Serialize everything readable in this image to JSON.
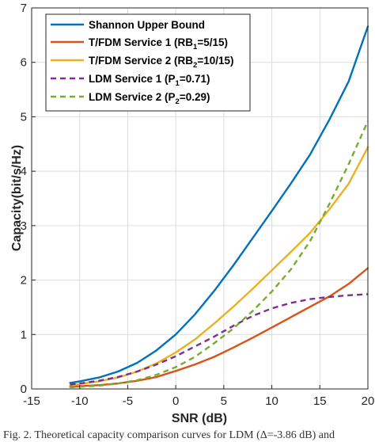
{
  "chart_data": {
    "type": "line",
    "title": "",
    "xlabel": "SNR (dB)",
    "ylabel": "Capacity(bit/s/Hz)",
    "xlim": [
      -15,
      20
    ],
    "ylim": [
      0,
      7
    ],
    "xticks": [
      -15,
      -10,
      -5,
      0,
      5,
      10,
      15,
      20
    ],
    "yticks": [
      0,
      1,
      2,
      3,
      4,
      5,
      6,
      7
    ],
    "grid": true,
    "legend_position": "top-left",
    "x": [
      -11,
      -10,
      -8,
      -6,
      -4,
      -2,
      0,
      2,
      4,
      6,
      8,
      10,
      12,
      14,
      16,
      18,
      20
    ],
    "series": [
      {
        "name": "Shannon Upper Bound",
        "legend": {
          "main": "Shannon Upper Bound",
          "sub": "",
          "tail": ""
        },
        "color": "#0072BD",
        "dash": "solid",
        "values": [
          0.11,
          0.14,
          0.21,
          0.32,
          0.48,
          0.71,
          1.0,
          1.37,
          1.8,
          2.27,
          2.77,
          3.27,
          3.78,
          4.31,
          4.95,
          5.65,
          6.66
        ]
      },
      {
        "name": "T/FDM  Service 1 (RB1=5/15)",
        "legend": {
          "main": "T/FDM  Service 1 (RB",
          "sub": "1",
          "tail": "=5/15)"
        },
        "color": "#D95319",
        "dash": "solid",
        "values": [
          0.04,
          0.05,
          0.07,
          0.1,
          0.15,
          0.22,
          0.33,
          0.45,
          0.59,
          0.76,
          0.94,
          1.13,
          1.32,
          1.51,
          1.7,
          1.93,
          2.22
        ]
      },
      {
        "name": "T/FDM  Service 2 (RB2=10/15)",
        "legend": {
          "main": "T/FDM  Service 2 (RB",
          "sub": "2",
          "tail": "=10/15)"
        },
        "color": "#EDB120",
        "dash": "solid",
        "values": [
          0.07,
          0.09,
          0.14,
          0.21,
          0.32,
          0.47,
          0.67,
          0.91,
          1.2,
          1.51,
          1.84,
          2.18,
          2.52,
          2.87,
          3.3,
          3.77,
          4.44
        ]
      },
      {
        "name": "LDM Service 1 (P1=0.71)",
        "legend": {
          "main": "LDM Service 1 (P",
          "sub": "1",
          "tail": "=0.71)"
        },
        "color": "#7E2F8E",
        "dash": "dashed",
        "values": [
          0.08,
          0.1,
          0.15,
          0.22,
          0.32,
          0.45,
          0.6,
          0.78,
          0.96,
          1.16,
          1.34,
          1.48,
          1.58,
          1.65,
          1.69,
          1.72,
          1.74
        ]
      },
      {
        "name": "LDM Service 2 (P2=0.29)",
        "legend": {
          "main": "LDM Service 2 (P",
          "sub": "2",
          "tail": "=0.29)"
        },
        "color": "#77AC30",
        "dash": "dashed",
        "values": [
          0.03,
          0.04,
          0.06,
          0.1,
          0.16,
          0.26,
          0.4,
          0.59,
          0.84,
          1.11,
          1.43,
          1.79,
          2.2,
          2.72,
          3.4,
          4.13,
          4.92
        ]
      }
    ]
  },
  "caption": "Fig. 2. Theoretical capacity comparison curves for LDM (Δ=-3.86 dB) and"
}
